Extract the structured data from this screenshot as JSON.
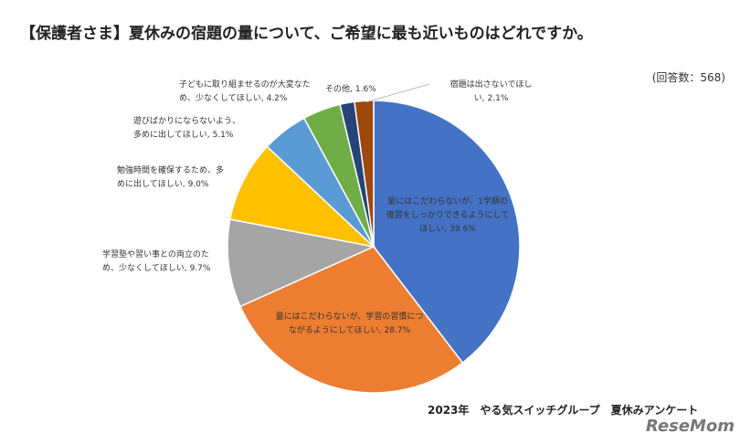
{
  "chart_data": {
    "type": "pie",
    "title": "【保護者さま】夏休みの宿題の量について、ご希望に最も近いものはどれですか。",
    "note": "(回答数：568)",
    "source": "2023年　やる気スイッチグループ　夏休みアンケート",
    "logo": "ReseMom",
    "categories": [
      "量にはこだわらないが、1学期の復習をしっかりできるようにしてほしい,",
      "量にはこだわらないが、学習の習慣につながるようにしてほしい,",
      "学習塾や習い事との両立のため、少なくしてほしい,",
      "勉強時間を確保するため、多めに出してほしい,",
      "遊びばかりにならないよう、多めに出してほしい,",
      "子どもに取り組ませるのが大変なため、少なくしてほしい,",
      "その他,",
      "宿題は出さないでほしい,"
    ],
    "values": [
      39.6,
      28.7,
      9.7,
      9.0,
      5.1,
      4.2,
      1.6,
      2.1
    ],
    "value_labels": [
      "39.6%",
      "28.7%",
      "9.7%",
      "9.0%",
      "5.1%",
      "4.2%",
      "1.6%",
      "2.1%"
    ],
    "colors": [
      "#4472c4",
      "#ed7d31",
      "#a5a5a5",
      "#ffc000",
      "#5b9bd5",
      "#70ad47",
      "#264478",
      "#9e480e"
    ]
  }
}
